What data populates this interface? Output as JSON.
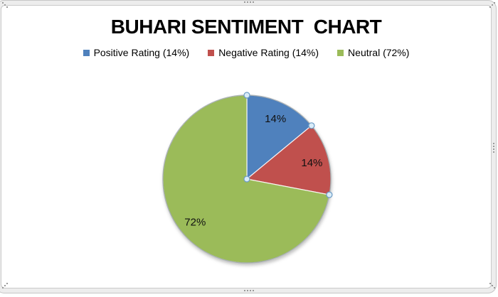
{
  "chart": {
    "frame": {
      "band_color": "#ededed",
      "line_color": "#c6c6c6",
      "handle_dot_color": "#9a9a9a",
      "selected": true
    }
  },
  "chart_data": {
    "type": "pie",
    "title": "BUHARI SENTIMENT  CHART",
    "legend_position": "top",
    "start_angle_deg": 0,
    "grid": false,
    "selection_handles": true,
    "slices": [
      {
        "id": "positive",
        "label": "Positive Rating (14%)",
        "value": 14,
        "data_label": "14%",
        "color": "#4F81BD"
      },
      {
        "id": "negative",
        "label": "Negative Rating (14%)",
        "value": 14,
        "data_label": "14%",
        "color": "#C0504D"
      },
      {
        "id": "neutral",
        "label": "Neutral (72%)",
        "value": 72,
        "data_label": "72%",
        "color": "#9BBB59"
      }
    ],
    "handle_style": {
      "fill": "#d9ecf8",
      "stroke": "#6b9bc6"
    },
    "outline_color": "rgba(110,122,128,0.55)"
  }
}
